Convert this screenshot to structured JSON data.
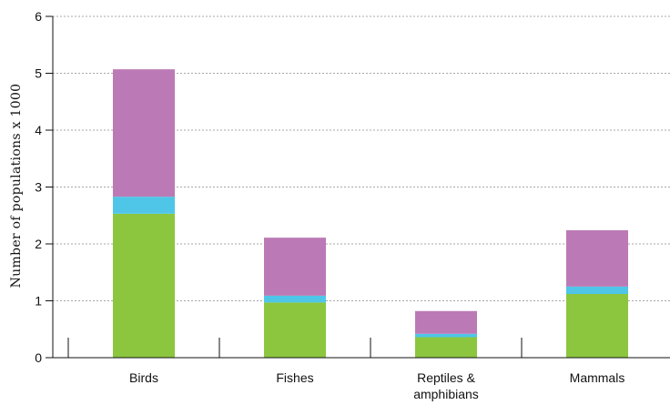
{
  "chart_data": {
    "type": "bar",
    "stacked": true,
    "title": "",
    "xlabel": "",
    "ylabel": "Number of populations  x 1000",
    "ylim": [
      0,
      6
    ],
    "yticks": [
      "0",
      "1",
      "2",
      "3",
      "4",
      "5",
      "6"
    ],
    "grid": true,
    "categories": [
      [
        "Birds"
      ],
      [
        "Fishes"
      ],
      [
        "Reptiles &",
        "amphibians"
      ],
      [
        "Mammals"
      ]
    ],
    "series": [
      {
        "color": "#8cc63f",
        "values": [
          2.53,
          0.97,
          0.36,
          1.12
        ]
      },
      {
        "color": "#4fc6e8",
        "values": [
          0.3,
          0.12,
          0.06,
          0.13
        ]
      },
      {
        "color": "#bb7ab5",
        "values": [
          2.24,
          1.02,
          0.4,
          0.99
        ]
      }
    ]
  }
}
